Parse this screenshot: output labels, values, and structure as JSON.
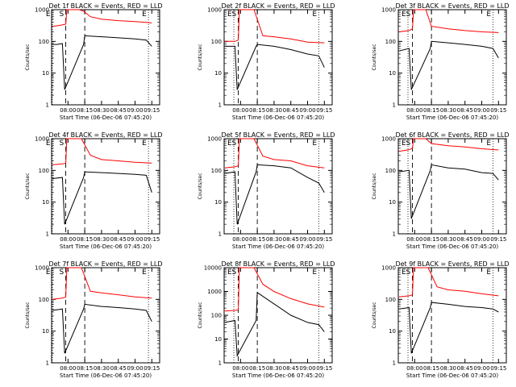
{
  "shared": {
    "ylabel": "Counts/sec",
    "xlabel": "Start Time (06-Dec-06 07:45:20)",
    "yticks": [
      1,
      10,
      100,
      1000
    ],
    "markers": [
      "E",
      "S",
      "E"
    ],
    "colors": {
      "events": "#000000",
      "lld": "#ff0000",
      "axes": "#000000"
    }
  },
  "chart_data": [
    {
      "type": "line",
      "title": "Det 1f BLACK = Events, RED = LLD",
      "ylabel": "Counts/sec",
      "xlabel": "Start Time (06-Dec-06 07:45:20)",
      "x_ticks": [
        "08:00",
        "08:15",
        "08:30",
        "08:45",
        "09:00",
        "09:15"
      ],
      "ylog": true,
      "ylim": [
        1,
        1000
      ],
      "series": [
        {
          "name": "LLD",
          "color": "#ff0000",
          "x": [
            "07:46",
            "07:50",
            "07:55",
            "07:58",
            "07:59",
            "08:05",
            "08:10",
            "08:14",
            "08:20",
            "08:30",
            "08:45",
            "09:00",
            "09:10",
            "09:15"
          ],
          "y": [
            300,
            310,
            330,
            350,
            1000,
            1000,
            1000,
            900,
            600,
            500,
            450,
            420,
            400,
            380
          ]
        },
        {
          "name": "Events",
          "color": "#000000",
          "x": [
            "07:46",
            "07:50",
            "07:55",
            "07:57",
            "08:14",
            "08:15",
            "08:30",
            "08:45",
            "09:00",
            "09:10",
            "09:15"
          ],
          "y": [
            80,
            80,
            85,
            3,
            80,
            150,
            140,
            130,
            120,
            110,
            70
          ]
        }
      ],
      "vlines_dotted": [
        "07:46",
        "09:12"
      ],
      "vlines_dashed": [
        "07:58",
        "08:15"
      ]
    },
    {
      "type": "line",
      "title": "Det 2f BLACK = Events, RED = LLD",
      "ylabel": "Counts/sec",
      "xlabel": "Start Time (06-Dec-06 07:45:20)",
      "x_ticks": [
        "08:00",
        "08:15",
        "08:30",
        "08:45",
        "09:00",
        "09:15"
      ],
      "ylog": true,
      "ylim": [
        1,
        1000
      ],
      "series": [
        {
          "name": "LLD",
          "color": "#ff0000",
          "x": [
            "07:46",
            "07:55",
            "07:58",
            "07:59",
            "08:05",
            "08:12",
            "08:20",
            "08:30",
            "08:45",
            "09:00",
            "09:15"
          ],
          "y": [
            100,
            100,
            110,
            1000,
            1000,
            1000,
            150,
            140,
            120,
            95,
            90
          ]
        },
        {
          "name": "Events",
          "color": "#000000",
          "x": [
            "07:46",
            "07:55",
            "07:57",
            "08:14",
            "08:15",
            "08:30",
            "08:45",
            "09:00",
            "09:10",
            "09:15"
          ],
          "y": [
            70,
            70,
            3,
            70,
            80,
            70,
            55,
            40,
            35,
            15
          ]
        }
      ],
      "vlines_dotted": [
        "07:54",
        "09:10"
      ],
      "vlines_dashed": [
        "07:58",
        "08:15"
      ]
    },
    {
      "type": "line",
      "title": "Det 3f BLACK = Events, RED = LLD",
      "ylabel": "Counts/sec",
      "xlabel": "Start Time (06-Dec-06 07:45:20)",
      "x_ticks": [
        "08:00",
        "08:15",
        "08:30",
        "08:45",
        "09:00",
        "09:15"
      ],
      "ylog": true,
      "ylim": [
        1,
        1000
      ],
      "series": [
        {
          "name": "LLD",
          "color": "#ff0000",
          "x": [
            "07:46",
            "07:55",
            "07:58",
            "07:59",
            "08:05",
            "08:10",
            "08:15",
            "08:30",
            "08:45",
            "09:00",
            "09:15"
          ],
          "y": [
            200,
            220,
            250,
            1000,
            1000,
            1000,
            300,
            250,
            220,
            200,
            190
          ]
        },
        {
          "name": "Events",
          "color": "#000000",
          "x": [
            "07:46",
            "07:55",
            "07:57",
            "08:14",
            "08:15",
            "08:30",
            "08:45",
            "09:00",
            "09:10",
            "09:15"
          ],
          "y": [
            50,
            60,
            3,
            60,
            100,
            90,
            80,
            70,
            60,
            30
          ]
        }
      ],
      "vlines_dotted": [
        "07:54",
        "09:10"
      ],
      "vlines_dashed": [
        "07:58",
        "08:15"
      ]
    },
    {
      "type": "line",
      "title": "Det 4f BLACK = Events, RED = LLD",
      "ylabel": "Counts/sec",
      "xlabel": "Start Time (06-Dec-06 07:45:20)",
      "x_ticks": [
        "08:00",
        "08:15",
        "08:30",
        "08:45",
        "09:00",
        "09:15"
      ],
      "ylog": true,
      "ylim": [
        1,
        1000
      ],
      "series": [
        {
          "name": "LLD",
          "color": "#ff0000",
          "x": [
            "07:46",
            "07:55",
            "07:58",
            "07:59",
            "08:05",
            "08:12",
            "08:20",
            "08:30",
            "08:45",
            "09:00",
            "09:15"
          ],
          "y": [
            150,
            160,
            170,
            1000,
            1000,
            1000,
            300,
            220,
            200,
            180,
            170
          ]
        },
        {
          "name": "Events",
          "color": "#000000",
          "x": [
            "07:46",
            "07:55",
            "07:57",
            "08:14",
            "08:15",
            "08:30",
            "08:45",
            "09:00",
            "09:10",
            "09:15"
          ],
          "y": [
            55,
            60,
            2,
            60,
            90,
            85,
            80,
            75,
            70,
            20
          ]
        }
      ],
      "vlines_dotted": [
        "07:46",
        "09:12"
      ],
      "vlines_dashed": [
        "07:58",
        "08:15"
      ]
    },
    {
      "type": "line",
      "title": "Det 5f BLACK = Events, RED = LLD",
      "ylabel": "Counts/sec",
      "xlabel": "Start Time (06-Dec-06 07:45:20)",
      "x_ticks": [
        "08:00",
        "08:15",
        "08:30",
        "08:45",
        "09:00",
        "09:15"
      ],
      "ylog": true,
      "ylim": [
        1,
        1000
      ],
      "series": [
        {
          "name": "LLD",
          "color": "#ff0000",
          "x": [
            "07:46",
            "07:55",
            "07:58",
            "07:59",
            "08:05",
            "08:12",
            "08:20",
            "08:30",
            "08:45",
            "09:00",
            "09:15"
          ],
          "y": [
            120,
            130,
            140,
            1000,
            1000,
            1000,
            280,
            220,
            200,
            140,
            120
          ]
        },
        {
          "name": "Events",
          "color": "#000000",
          "x": [
            "07:46",
            "07:55",
            "07:57",
            "08:14",
            "08:15",
            "08:30",
            "08:45",
            "09:00",
            "09:10",
            "09:15"
          ],
          "y": [
            80,
            90,
            2,
            90,
            150,
            140,
            120,
            60,
            40,
            20
          ]
        }
      ],
      "vlines_dotted": [
        "07:54",
        "09:10"
      ],
      "vlines_dashed": [
        "07:58",
        "08:15"
      ]
    },
    {
      "type": "line",
      "title": "Det 6f BLACK = Events, RED = LLD",
      "ylabel": "Counts/sec",
      "xlabel": "Start Time (06-Dec-06 07:45:20)",
      "x_ticks": [
        "08:00",
        "08:15",
        "08:30",
        "08:45",
        "09:00",
        "09:15"
      ],
      "ylog": true,
      "ylim": [
        1,
        1000
      ],
      "series": [
        {
          "name": "LLD",
          "color": "#ff0000",
          "x": [
            "07:46",
            "07:55",
            "07:58",
            "07:59",
            "08:05",
            "08:10",
            "08:15",
            "08:30",
            "08:45",
            "09:00",
            "09:15"
          ],
          "y": [
            400,
            450,
            500,
            1000,
            1000,
            1000,
            700,
            600,
            550,
            480,
            440
          ]
        },
        {
          "name": "Events",
          "color": "#000000",
          "x": [
            "07:46",
            "07:55",
            "07:57",
            "08:14",
            "08:15",
            "08:30",
            "08:45",
            "09:00",
            "09:10",
            "09:15"
          ],
          "y": [
            90,
            100,
            3,
            100,
            150,
            120,
            110,
            85,
            80,
            50
          ]
        }
      ],
      "vlines_dotted": [
        "07:54",
        "09:10"
      ],
      "vlines_dashed": [
        "07:58",
        "08:15"
      ]
    },
    {
      "type": "line",
      "title": "Det 7f BLACK = Events, RED = LLD",
      "ylabel": "Counts/sec",
      "xlabel": "Start Time (06-Dec-06 07:45:20)",
      "x_ticks": [
        "08:00",
        "08:15",
        "08:30",
        "08:45",
        "09:00",
        "09:15"
      ],
      "ylog": true,
      "ylim": [
        1,
        1000
      ],
      "series": [
        {
          "name": "LLD",
          "color": "#ff0000",
          "x": [
            "07:46",
            "07:55",
            "07:58",
            "07:59",
            "08:05",
            "08:12",
            "08:20",
            "08:30",
            "08:45",
            "09:00",
            "09:15"
          ],
          "y": [
            100,
            110,
            120,
            1000,
            1000,
            1000,
            180,
            160,
            140,
            120,
            110
          ]
        },
        {
          "name": "Events",
          "color": "#000000",
          "x": [
            "07:46",
            "07:55",
            "07:57",
            "08:14",
            "08:15",
            "08:30",
            "08:45",
            "09:00",
            "09:10",
            "09:15"
          ],
          "y": [
            45,
            50,
            2,
            50,
            70,
            60,
            55,
            50,
            45,
            20
          ]
        }
      ],
      "vlines_dotted": [
        "07:46",
        "09:12"
      ],
      "vlines_dashed": [
        "07:58",
        "08:15"
      ]
    },
    {
      "type": "line",
      "title": "Det 8f BLACK = Events, RED = LLD",
      "ylabel": "Counts/sec",
      "xlabel": "Start Time (06-Dec-06 07:45:20)",
      "x_ticks": [
        "08:00",
        "08:15",
        "08:30",
        "08:45",
        "09:00",
        "09:15"
      ],
      "ylog": true,
      "ylim": [
        1,
        10000
      ],
      "series": [
        {
          "name": "LLD",
          "color": "#ff0000",
          "x": [
            "07:46",
            "07:55",
            "07:58",
            "07:59",
            "08:05",
            "08:12",
            "08:20",
            "08:30",
            "08:45",
            "09:00",
            "09:15"
          ],
          "y": [
            150,
            160,
            170,
            10000,
            10000,
            10000,
            2000,
            1000,
            500,
            300,
            220
          ]
        },
        {
          "name": "Events",
          "color": "#000000",
          "x": [
            "07:46",
            "07:55",
            "07:57",
            "08:14",
            "08:15",
            "08:30",
            "08:45",
            "09:00",
            "09:10",
            "09:15"
          ],
          "y": [
            50,
            60,
            2,
            60,
            900,
            300,
            100,
            50,
            40,
            20
          ]
        }
      ],
      "vlines_dotted": [
        "07:54",
        "09:10"
      ],
      "vlines_dashed": [
        "07:58",
        "08:15"
      ]
    },
    {
      "type": "line",
      "title": "Det 9f BLACK = Events, RED = LLD",
      "ylabel": "Counts/sec",
      "xlabel": "Start Time (06-Dec-06 07:45:20)",
      "x_ticks": [
        "08:00",
        "08:15",
        "08:30",
        "08:45",
        "09:00",
        "09:15"
      ],
      "ylog": true,
      "ylim": [
        1,
        1000
      ],
      "series": [
        {
          "name": "LLD",
          "color": "#ff0000",
          "x": [
            "07:46",
            "07:55",
            "07:58",
            "07:59",
            "08:05",
            "08:12",
            "08:20",
            "08:30",
            "08:45",
            "09:00",
            "09:15"
          ],
          "y": [
            120,
            130,
            140,
            1000,
            1000,
            1000,
            250,
            200,
            180,
            150,
            130
          ]
        },
        {
          "name": "Events",
          "color": "#000000",
          "x": [
            "07:46",
            "07:55",
            "07:57",
            "08:14",
            "08:15",
            "08:30",
            "08:45",
            "09:00",
            "09:10",
            "09:15"
          ],
          "y": [
            50,
            55,
            2,
            55,
            80,
            70,
            60,
            55,
            50,
            40
          ]
        }
      ],
      "vlines_dotted": [
        "07:54",
        "09:10"
      ],
      "vlines_dashed": [
        "07:58",
        "08:15"
      ]
    }
  ]
}
